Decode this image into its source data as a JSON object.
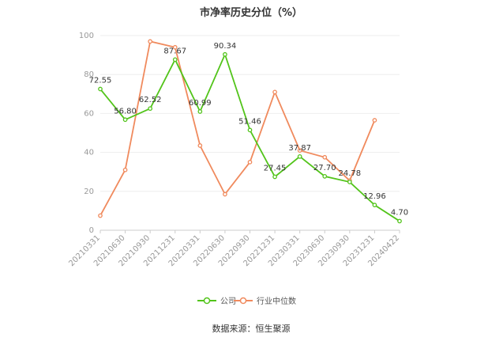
{
  "chart_data": {
    "type": "line",
    "title": "市净率历史分位（%）",
    "categories": [
      "20210331",
      "20210630",
      "20210930",
      "20211231",
      "20220331",
      "20220630",
      "20220930",
      "20221231",
      "20230331",
      "20230630",
      "20230930",
      "20231231",
      "20240422"
    ],
    "ylim": [
      0,
      100
    ],
    "yticks": [
      0,
      20,
      40,
      60,
      80,
      100
    ],
    "grid": true,
    "legend_position": "bottom",
    "series": [
      {
        "name": "公司",
        "color": "#52c41a",
        "values": [
          72.55,
          56.8,
          62.52,
          87.67,
          60.99,
          90.34,
          51.46,
          27.45,
          37.87,
          27.7,
          24.78,
          12.96,
          4.7
        ],
        "labels": [
          "72.55",
          "56.80",
          "62.52",
          "87.67",
          "60.99",
          "90.34",
          "51.46",
          "27.45",
          "37.87",
          "27.70",
          "24.78",
          "12.96",
          "4.70"
        ]
      },
      {
        "name": "行业中位数",
        "color": "#f08a5d",
        "values": [
          7.5,
          31,
          97,
          94,
          43.5,
          18.5,
          35,
          71,
          41,
          37.5,
          25.5,
          56.5,
          null
        ]
      }
    ],
    "source": "数据来源：恒生聚源"
  }
}
